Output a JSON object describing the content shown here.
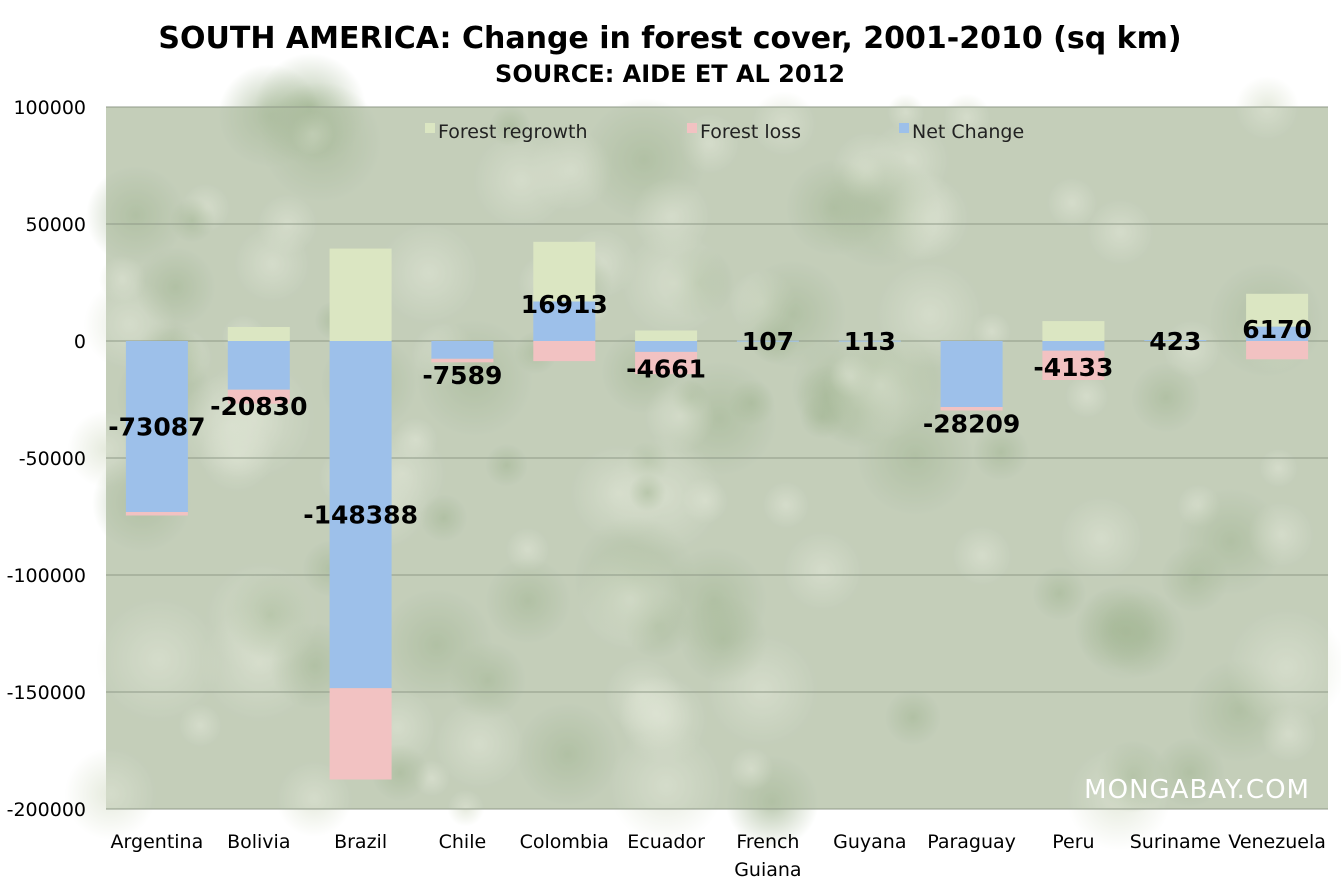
{
  "chart_data": {
    "type": "bar",
    "stacked": true,
    "title": "SOUTH AMERICA: Change in forest cover, 2001-2010 (sq km)",
    "subtitle": "SOURCE: AIDE ET AL 2012",
    "categories": [
      "Argentina",
      "Bolivia",
      "Brazil",
      "Chile",
      "Colombia",
      "Ecuador",
      "French Guiana",
      "Guyana",
      "Paraguay",
      "Peru",
      "Suriname",
      "Venezuela"
    ],
    "series": [
      {
        "name": "Forest regrowth",
        "color": "#dbe6c2",
        "values": [
          0,
          6000,
          39500,
          0,
          25500,
          4500,
          0,
          0,
          0,
          8500,
          0,
          14000
        ]
      },
      {
        "name": "Forest loss",
        "color": "#f2c2c2",
        "values": [
          -1500,
          -6000,
          -39000,
          -1500,
          -8600,
          -9500,
          0,
          0,
          -1500,
          -12500,
          0,
          -7800
        ]
      },
      {
        "name": "Net Change",
        "color": "#9dc0ea",
        "values": [
          -73087,
          -20830,
          -148388,
          -7589,
          16913,
          -4661,
          107,
          113,
          -28209,
          -4133,
          423,
          6170
        ]
      }
    ],
    "data_labels": [
      "-73087",
      "-20830",
      "-148388",
      "-7589",
      "16913",
      "-4661",
      "107",
      "113",
      "-28209",
      "-4133",
      "423",
      "6170"
    ],
    "y_ticks": [
      "100000",
      "50000",
      "0",
      "-50000",
      "-100000",
      "-150000",
      "-200000"
    ],
    "ylim": [
      -200000,
      100000
    ],
    "grid": true,
    "legend_position": "top"
  },
  "watermark": "MONGABAY.COM",
  "colors": {
    "background_canopy": "#a9b89a",
    "gridline": "#8f9a88"
  }
}
